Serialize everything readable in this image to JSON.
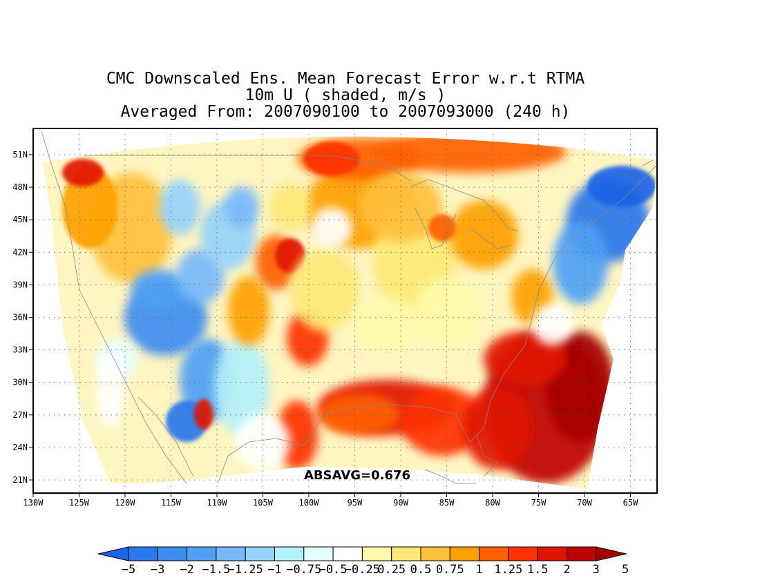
{
  "title": {
    "line1": "CMC Downscaled Ens. Mean Forecast Error w.r.t RTMA",
    "line2": "10m U ( shaded, m/s )",
    "line3": "Averaged From: 2007090100 to 2007093000 (240 h)"
  },
  "axes": {
    "lat_labels": [
      "51N",
      "48N",
      "45N",
      "42N",
      "39N",
      "36N",
      "33N",
      "30N",
      "27N",
      "24N",
      "21N"
    ],
    "lon_labels": [
      "130W",
      "125W",
      "120W",
      "115W",
      "110W",
      "105W",
      "100W",
      "95W",
      "90W",
      "85W",
      "80W",
      "75W",
      "70W",
      "65W"
    ]
  },
  "stat": {
    "label": "ABSAVG=0.676"
  },
  "colorbar": {
    "labels": [
      "-5",
      "-3",
      "-2",
      "-1.5",
      "-1.25",
      "-1",
      "-0.75",
      "-0.5",
      "-0.25",
      "0.25",
      "0.5",
      "0.75",
      "1",
      "1.25",
      "1.5",
      "2",
      "3",
      "5"
    ],
    "colors": [
      "#1e64e6",
      "#2a78eb",
      "#3c8cf0",
      "#50a0f5",
      "#78b9fa",
      "#96d2fa",
      "#b4f0fa",
      "#e1ffff",
      "#ffffff",
      "#fffaaa",
      "#ffe878",
      "#ffc03c",
      "#ffa000",
      "#ff6000",
      "#ff3200",
      "#e11400",
      "#c00000",
      "#a50000"
    ]
  }
}
